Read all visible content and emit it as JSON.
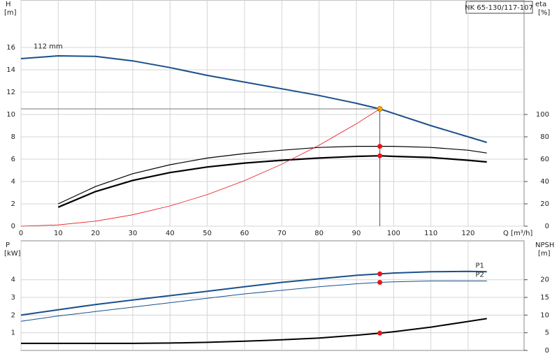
{
  "title": "NK 65-130/117-107",
  "chart_data": [
    {
      "type": "line",
      "annotation": "112 mm",
      "x_label": "Q [m³/h]",
      "y_label": "H",
      "y_unit": "[m]",
      "y2_label": "eta",
      "y2_unit": "[%]",
      "x": [
        0,
        10,
        20,
        30,
        40,
        50,
        60,
        70,
        80,
        90,
        96.3,
        100,
        110,
        120,
        125
      ],
      "xlim": [
        0,
        135
      ],
      "xticks": [
        0,
        10,
        20,
        30,
        40,
        50,
        60,
        70,
        80,
        90,
        100,
        110,
        120
      ],
      "ylim": [
        0,
        20.25
      ],
      "yticks": [
        0,
        2,
        4,
        6,
        8,
        10,
        12,
        14,
        16
      ],
      "y2lim": [
        0,
        202.5
      ],
      "y2ticks": [
        0,
        20,
        40,
        60,
        80,
        100
      ],
      "grid": true,
      "marker_x": 96.3,
      "marker_color": "#e8141c",
      "guide_lines": true,
      "series": [
        {
          "color": "#1a4f8c",
          "width": 2,
          "marker_color": "#f5b400",
          "values": [
            15.0,
            15.25,
            15.2,
            14.8,
            14.2,
            13.5,
            12.9,
            12.3,
            11.7,
            11.0,
            10.5,
            10.1,
            9.0,
            8.0,
            7.5
          ]
        },
        {
          "color": "#000000",
          "width": 1.2,
          "axis": "y2",
          "values": [
            null,
            20,
            35.5,
            47,
            55,
            61,
            65,
            68,
            70.5,
            71.5,
            71.5,
            71.5,
            70.5,
            68,
            65.5
          ]
        },
        {
          "color": "#000000",
          "width": 2.2,
          "axis": "y2",
          "values": [
            null,
            17,
            31,
            41,
            48,
            53,
            56.5,
            59,
            61,
            62.5,
            63,
            62.5,
            61.5,
            59,
            57.5
          ]
        },
        {
          "color": "#e8141c",
          "width": 0.8,
          "marker": false,
          "values": [
            0,
            0.11,
            0.45,
            1.02,
            1.81,
            2.83,
            4.08,
            5.55,
            7.25,
            9.17,
            10.5,
            null,
            null,
            null,
            null
          ]
        }
      ]
    },
    {
      "type": "line",
      "y_label": "P",
      "y_unit": "[kW]",
      "y2_label": "NPSH",
      "y2_unit": "[m]",
      "x": [
        0,
        10,
        20,
        30,
        40,
        50,
        60,
        70,
        80,
        90,
        96.3,
        100,
        110,
        120,
        125
      ],
      "xlim": [
        0,
        135
      ],
      "xticks": [
        0,
        10,
        20,
        30,
        40,
        50,
        60,
        70,
        80,
        90,
        100,
        110,
        120
      ],
      "ylim": [
        0,
        6.2
      ],
      "yticks": [
        1,
        2,
        3,
        4
      ],
      "y2lim": [
        0,
        31
      ],
      "y2ticks": [
        0,
        5,
        10,
        15,
        20
      ],
      "grid": true,
      "marker_x": 96.3,
      "marker_color": "#e8141c",
      "series": [
        {
          "name": "P1",
          "color": "#1a4f8c",
          "width": 2,
          "values": [
            2.0,
            2.3,
            2.6,
            2.85,
            3.1,
            3.35,
            3.6,
            3.85,
            4.05,
            4.25,
            4.33,
            4.38,
            4.45,
            4.47,
            4.45
          ]
        },
        {
          "name": "P2",
          "color": "#1a4f8c",
          "width": 1,
          "values": [
            1.65,
            1.95,
            2.2,
            2.45,
            2.7,
            2.95,
            3.2,
            3.4,
            3.6,
            3.77,
            3.85,
            3.88,
            3.93,
            3.93,
            3.93
          ]
        },
        {
          "color": "#000000",
          "width": 2,
          "axis": "y2",
          "values": [
            2.0,
            2.0,
            2.0,
            2.0,
            2.1,
            2.3,
            2.6,
            3.0,
            3.5,
            4.3,
            4.9,
            5.3,
            6.6,
            8.2,
            9.0
          ]
        }
      ]
    }
  ]
}
